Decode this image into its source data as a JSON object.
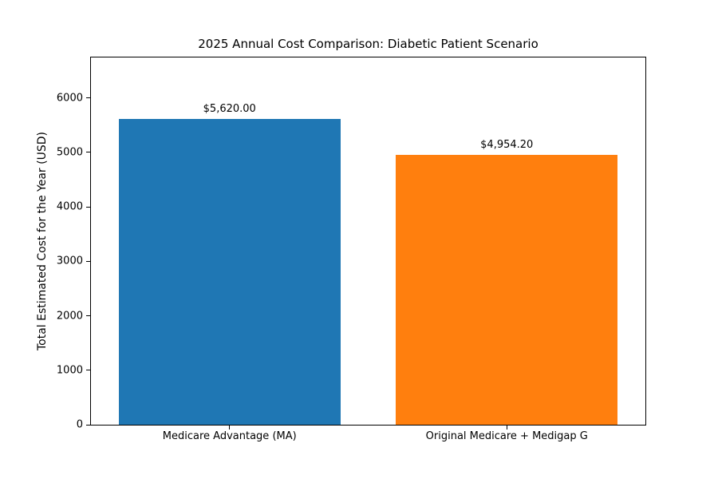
{
  "chart_data": {
    "type": "bar",
    "title": "2025 Annual Cost Comparison: Diabetic Patient Scenario",
    "xlabel": "",
    "ylabel": "Total Estimated Cost for the Year (USD)",
    "categories": [
      "Medicare Advantage (MA)",
      "Original Medicare + Medigap G"
    ],
    "values": [
      5620.0,
      4954.2
    ],
    "value_labels": [
      "$5,620.00",
      "$4,954.20"
    ],
    "bar_colors": [
      "#1f77b4",
      "#ff7f0e"
    ],
    "bar_names": [
      "bar-medicare-advantage",
      "bar-original-medicare-medigap-g"
    ],
    "ylim": [
      0,
      6744
    ],
    "yticks": [
      0,
      1000,
      2000,
      3000,
      4000,
      5000,
      6000
    ],
    "ytick_labels": [
      "0",
      "1000",
      "2000",
      "3000",
      "4000",
      "5000",
      "6000"
    ],
    "bar_width_fraction": 0.4,
    "grid": false,
    "legend": null,
    "spine_color": "#000000",
    "background_color": "#ffffff"
  }
}
